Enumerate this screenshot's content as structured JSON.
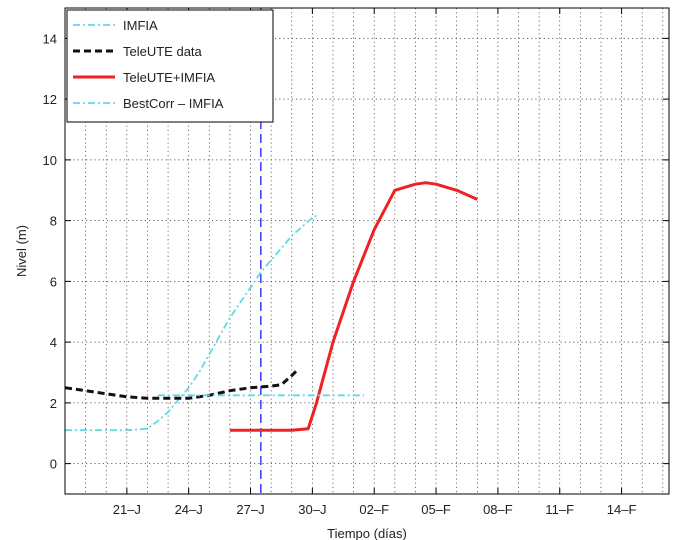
{
  "chart_data": {
    "type": "line",
    "title": "",
    "xlabel": "Tiempo (días)",
    "ylabel": "Nivel (m)",
    "xlim": [
      -1,
      28.3
    ],
    "ylim": [
      -1,
      15
    ],
    "grid": true,
    "legend_position": "top-left",
    "x_ticks": [
      {
        "x": 2,
        "label": "21–J"
      },
      {
        "x": 5,
        "label": "24–J"
      },
      {
        "x": 8,
        "label": "27–J"
      },
      {
        "x": 11,
        "label": "30–J"
      },
      {
        "x": 14,
        "label": "02–F"
      },
      {
        "x": 17,
        "label": "05–F"
      },
      {
        "x": 20,
        "label": "08–F"
      },
      {
        "x": 23,
        "label": "11–F"
      },
      {
        "x": 26,
        "label": "14–F"
      }
    ],
    "y_ticks": [
      {
        "y": 0,
        "label": "0"
      },
      {
        "y": 2,
        "label": "2"
      },
      {
        "y": 4,
        "label": "4"
      },
      {
        "y": 6,
        "label": "6"
      },
      {
        "y": 8,
        "label": "8"
      },
      {
        "y": 10,
        "label": "10"
      },
      {
        "y": 12,
        "label": "12"
      },
      {
        "y": 14,
        "label": "14"
      }
    ],
    "vline": {
      "x": 8.5,
      "color": "#3a3aff"
    },
    "series": [
      {
        "name": "IMFIA",
        "color": "#5fd9e6",
        "dash": "dashdot",
        "x": [
          -1,
          0,
          1,
          2,
          3,
          3.5,
          4,
          4.5,
          5,
          5.5,
          6,
          6.5,
          7,
          7.5,
          8,
          8.5,
          9,
          9.5,
          10,
          10.5,
          11,
          11.3
        ],
        "y": [
          1.1,
          1.1,
          1.1,
          1.1,
          1.15,
          1.4,
          1.7,
          2.1,
          2.5,
          3.0,
          3.6,
          4.2,
          4.8,
          5.3,
          5.8,
          6.3,
          6.7,
          7.1,
          7.5,
          7.8,
          8.1,
          8.2
        ]
      },
      {
        "name": "TeleUTE data",
        "color": "#111111",
        "dash": "dashed",
        "x": [
          -1,
          0,
          1,
          2,
          3,
          4,
          5,
          6,
          7,
          8,
          9,
          9.5,
          10,
          10.3
        ],
        "y": [
          2.5,
          2.4,
          2.3,
          2.2,
          2.15,
          2.15,
          2.15,
          2.25,
          2.4,
          2.5,
          2.55,
          2.6,
          2.9,
          3.1
        ]
      },
      {
        "name": "TeleUTE+IMFIA",
        "color": "#ee2222",
        "dash": "solid",
        "x": [
          7,
          8,
          9,
          10,
          10.8,
          11.2,
          12,
          13,
          14,
          15,
          16,
          16.5,
          17,
          18,
          19
        ],
        "y": [
          1.1,
          1.1,
          1.1,
          1.1,
          1.15,
          2.0,
          4.0,
          6.0,
          7.7,
          9.0,
          9.2,
          9.25,
          9.2,
          9.0,
          8.7
        ]
      },
      {
        "name": "BestCorr – IMFIA",
        "color": "#5fd9e6",
        "dash": "dashdot",
        "x": [
          3.5,
          5,
          6.5,
          8,
          9.5,
          11,
          12.5,
          13.5
        ],
        "y": [
          2.25,
          2.25,
          2.25,
          2.25,
          2.25,
          2.25,
          2.25,
          2.25
        ]
      }
    ]
  }
}
